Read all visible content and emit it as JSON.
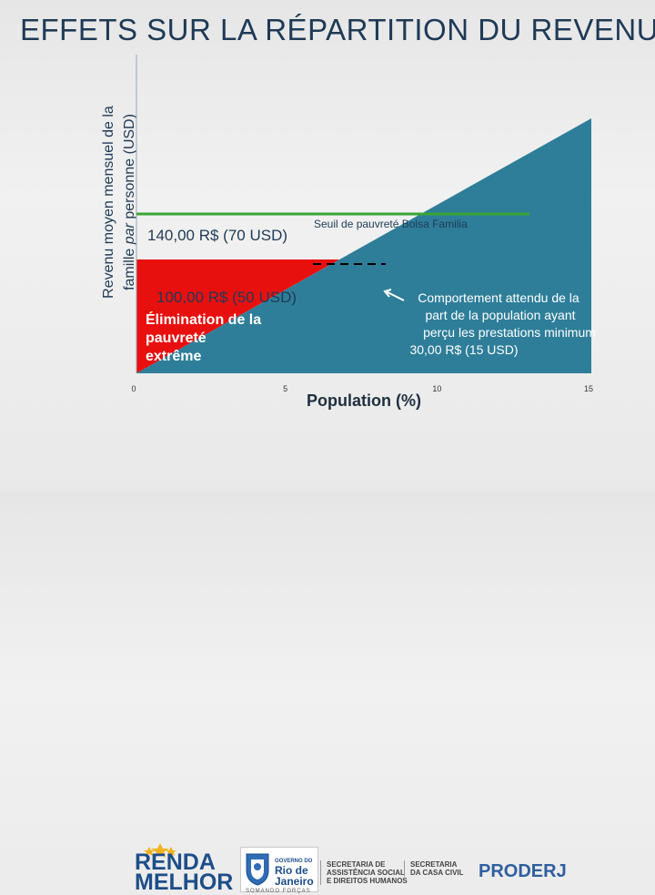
{
  "title": "EFFETS SUR LA RÉPARTITION DU REVENU",
  "chart_data": {
    "type": "area",
    "ylabel_line1": "Revenu moyen mensuel de la",
    "ylabel_line2_prefix": "famille ",
    "ylabel_line2_italic": "par",
    "ylabel_line2_suffix": " personne (USD)",
    "xlabel": "Population (%)",
    "xlim": [
      0,
      15
    ],
    "x_ticks": [
      "0",
      "5",
      "10",
      "15"
    ],
    "series": [
      {
        "name": "",
        "x": [
          0,
          15
        ],
        "y": [
          0,
          112
        ],
        "color": "#2e7e99"
      }
    ],
    "extreme_poverty_line": {
      "value": 50,
      "label": "100,00 R$ (50 USD)"
    },
    "poverty_line": {
      "value": 70,
      "label": "140,00 R$ (70 USD)",
      "caption": "Seuil de pauvreté Bolsa Familia",
      "color": "#3aa535"
    },
    "minimum_benefit": {
      "value": 15
    },
    "region_extreme_label": "Élimination de la pauvreté extrême",
    "region_extreme_lines": [
      "Élimination de la",
      "pauvreté",
      "extrême"
    ],
    "annotation_lines": [
      "Comportement attendu de la",
      "part de la population ayant",
      "perçu les prestations minimum",
      "30,00 R$ (15 USD)"
    ],
    "colors": {
      "red": "#e8100f",
      "teal": "#2e7e99",
      "green": "#3aa535"
    }
  },
  "footer": {
    "renda_line1": "RENDA",
    "renda_line2": "MELHOR",
    "gov_line1": "GOVERNO DO",
    "gov_line2": "Rio de",
    "gov_line3": "Janeiro",
    "gov_slogan": "SOMANDO FORÇAS",
    "sec1_lines": [
      "SECRETARIA DE",
      "ASSISTÊNCIA SOCIAL",
      "E DIREITOS HUMANOS"
    ],
    "sec2_lines": [
      "SECRETARIA",
      "DA CASA CIVIL"
    ],
    "proderj": "PRODERJ"
  }
}
